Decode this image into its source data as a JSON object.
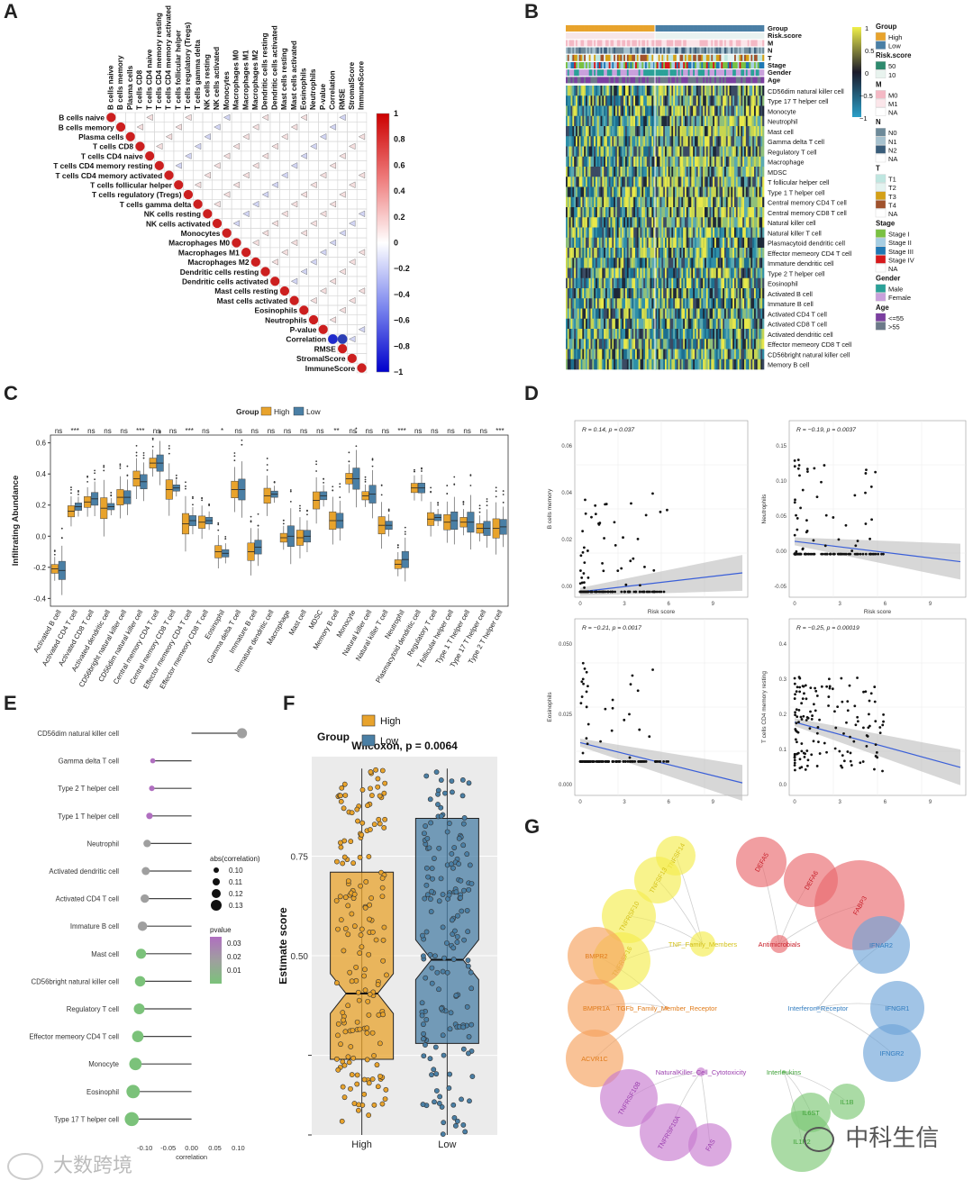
{
  "panels": {
    "A": "A",
    "B": "B",
    "C": "C",
    "D": "D",
    "E": "E",
    "F": "F",
    "G": "G"
  },
  "watermark": {
    "left": "大数跨境",
    "right": "中科生信"
  },
  "chart_data": [
    {
      "panel": "A",
      "type": "heatmap",
      "labels": [
        "B cells naive",
        "B cells memory",
        "Plasma cells",
        "T cells CD8",
        "T cells CD4 naive",
        "T cells CD4 memory resting",
        "T cells CD4 memory activated",
        "T cells follicular helper",
        "T cells regulatory (Tregs)",
        "T cells gamma delta",
        "NK cells resting",
        "NK cells activated",
        "Monocytes",
        "Macrophages M0",
        "Macrophages M1",
        "Macrophages M2",
        "Dendritic cells resting",
        "Dendritic cells activated",
        "Mast cells resting",
        "Mast cells activated",
        "Eosinophils",
        "Neutrophils",
        "P-value",
        "Correlation",
        "RMSE",
        "StromalScore",
        "ImmuneScore"
      ],
      "colorbar_ticks": [
        "1",
        "0.8",
        "0.6",
        "0.4",
        "0.2",
        "0",
        "−0.2",
        "−0.4",
        "−0.6",
        "−0.8",
        "−1"
      ],
      "colors": {
        "pos": "#cc1f1f",
        "neg": "#1f2bcc"
      }
    },
    {
      "panel": "B",
      "type": "heatmap",
      "annotation_rows": [
        "Group",
        "Risk.score",
        "M",
        "N",
        "T",
        "Stage",
        "Gender",
        "Age"
      ],
      "rows": [
        "CD56dim natural killer cell",
        "Type 17 T helper cell",
        "Monocyte",
        "Neutrophil",
        "Mast cell",
        "Gamma delta T cell",
        "Regulatory T cell",
        "Macrophage",
        "MDSC",
        "T follicular helper cell",
        "Type 1 T helper cell",
        "Central memory CD4 T cell",
        "Central memory CD8 T cell",
        "Natural killer cell",
        "Natural killer T cell",
        "Plasmacytoid dendritic cell",
        "Effector memeory CD4 T cell",
        "Immature dendritic cell",
        "Type 2 T helper cell",
        "Eosinophil",
        "Activated B cell",
        "Immature  B cell",
        "Activated CD4 T cell",
        "Activated CD8 T cell",
        "Activated dendritic cell",
        "Effector memeory CD8 T cell",
        "CD56bright natural killer cell",
        "Memory B cell"
      ],
      "scale_ticks": [
        "1",
        "0.5",
        "0",
        "−0.5",
        "−1"
      ],
      "legends": [
        {
          "title": "Group",
          "items": [
            {
              "label": "High",
              "color": "#e8a32c"
            },
            {
              "label": "Low",
              "color": "#4a7fa5"
            }
          ]
        },
        {
          "title": "Risk.score",
          "items": [
            {
              "label": "50",
              "color": "#2e8a6e"
            },
            {
              "label": "10",
              "color": "#e8f3ee"
            }
          ]
        },
        {
          "title": "M",
          "items": [
            {
              "label": "M0",
              "color": "#f4b8c4"
            },
            {
              "label": "M1",
              "color": "#fbe6ea"
            },
            {
              "label": "NA",
              "color": "#ffffff"
            }
          ]
        },
        {
          "title": "N",
          "items": [
            {
              "label": "N0",
              "color": "#6e8a99"
            },
            {
              "label": "N1",
              "color": "#a7c2cf"
            },
            {
              "label": "N2",
              "color": "#3a5d7a"
            },
            {
              "label": "NA",
              "color": "#ffffff"
            }
          ]
        },
        {
          "title": "T",
          "items": [
            {
              "label": "T1",
              "color": "#bfe6e0"
            },
            {
              "label": "T2",
              "color": "#e4f3f0"
            },
            {
              "label": "T3",
              "color": "#d4a017"
            },
            {
              "label": "T4",
              "color": "#a0522d"
            },
            {
              "label": "NA",
              "color": "#ffffff"
            }
          ]
        },
        {
          "title": "Stage",
          "items": [
            {
              "label": "Stage I",
              "color": "#7ac142"
            },
            {
              "label": "Stage II",
              "color": "#a6cee3"
            },
            {
              "label": "Stage III",
              "color": "#1f78b4"
            },
            {
              "label": "Stage IV",
              "color": "#d7191c"
            },
            {
              "label": "NA",
              "color": "#ffffff"
            }
          ]
        },
        {
          "title": "Gender",
          "items": [
            {
              "label": "Male",
              "color": "#2aa198"
            },
            {
              "label": "Female",
              "color": "#c9a0dc"
            }
          ]
        },
        {
          "title": "Age",
          "items": [
            {
              "label": "<=55",
              "color": "#7b3fa0"
            },
            {
              "label": ">55",
              "color": "#6c7a89"
            }
          ]
        }
      ]
    },
    {
      "panel": "C",
      "type": "box",
      "legend_title": "Group",
      "series": [
        {
          "name": "High",
          "color": "#e8a32c"
        },
        {
          "name": "Low",
          "color": "#4a7fa5"
        }
      ],
      "ylabel": "Infiltrating Abundance",
      "ylim": [
        -0.45,
        0.65
      ],
      "yticks": [
        "0.6",
        "0.4",
        "0.2",
        "0.0",
        "-0.2",
        "-0.4"
      ],
      "categories": [
        "Activated B cell",
        "Activated CD4 T cell",
        "Activated CD8 T cell",
        "Activated dendritic cell",
        "CD56bright natural killer cell",
        "CD56dim natural killer cell",
        "Central memory CD4 T cell",
        "Central memory CD8 T cell",
        "Effector memeory CD4 T cell",
        "Effector memeory CD8 T cell",
        "Eosinophil",
        "Gamma delta T cell",
        "Immature  B cell",
        "Immature dendritic cell",
        "Macrophage",
        "Mast cell",
        "MDSC",
        "Memory B cell",
        "Monocyte",
        "Natural killer cell",
        "Natural killer T cell",
        "Neutrophil",
        "Plasmacytoid dendritic cell",
        "Regulatory T cell",
        "T follicular helper cell",
        "Type 1 T helper cell",
        "Type 17 T helper cell",
        "Type 2 T helper cell"
      ],
      "significance": [
        "ns",
        "***",
        "ns",
        "ns",
        "ns",
        "***",
        "ns",
        "ns",
        "***",
        "ns",
        "*",
        "ns",
        "ns",
        "ns",
        "ns",
        "ns",
        "ns",
        "**",
        "ns",
        "ns",
        "ns",
        "***",
        "ns",
        "ns",
        "ns",
        "ns",
        "ns",
        "***"
      ],
      "medians_high": [
        -0.21,
        0.16,
        0.22,
        0.18,
        0.25,
        0.37,
        0.47,
        0.3,
        0.08,
        0.09,
        -0.1,
        0.3,
        -0.1,
        0.26,
        -0.01,
        -0.01,
        0.23,
        0.1,
        0.37,
        0.26,
        0.07,
        -0.18,
        0.31,
        0.11,
        0.09,
        0.09,
        0.05,
        0.05
      ],
      "medians_low": [
        -0.22,
        0.19,
        0.24,
        0.19,
        0.25,
        0.35,
        0.47,
        0.31,
        0.1,
        0.1,
        -0.11,
        0.3,
        -0.07,
        0.27,
        0.0,
        0.0,
        0.26,
        0.1,
        0.37,
        0.27,
        0.07,
        -0.15,
        0.31,
        0.12,
        0.1,
        0.09,
        0.05,
        0.06
      ]
    },
    {
      "panel": "D",
      "type": "scatter",
      "subplots": [
        {
          "ylabel": "B cells memory",
          "xlabel": "Risk score",
          "stat": "R = 0.14, p = 0.037",
          "yticks": [
            "0.06",
            "0.04",
            "0.02",
            "0.00"
          ],
          "xticks": [
            "0",
            "3",
            "6",
            "9"
          ],
          "xlim": [
            0,
            11
          ],
          "ylim": [
            0,
            0.07
          ],
          "line": [
            [
              0,
              0.0
            ],
            [
              11,
              0.008
            ]
          ]
        },
        {
          "ylabel": "Neutrophils",
          "xlabel": "Risk score",
          "stat": "R = −0.19, p = 0.0037",
          "yticks": [
            "0.15",
            "0.10",
            "0.05",
            "0.00",
            "-0.05"
          ],
          "xticks": [
            "0",
            "3",
            "6",
            "9"
          ],
          "xlim": [
            0,
            11
          ],
          "ylim": [
            -0.05,
            0.17
          ],
          "line": [
            [
              0,
              0.017
            ],
            [
              11,
              -0.01
            ]
          ]
        },
        {
          "ylabel": "Eosinophils",
          "xlabel": "Risk score",
          "stat": "R = −0.21, p = 0.0017",
          "yticks": [
            "0.050",
            "0.025",
            "0.000"
          ],
          "xticks": [
            "0",
            "3",
            "6",
            "9"
          ],
          "xlim": [
            0,
            11
          ],
          "ylim": [
            -0.012,
            0.058
          ],
          "line": [
            [
              0,
              0.008
            ],
            [
              11,
              -0.009
            ]
          ]
        },
        {
          "ylabel": "T cells CD4 memory resting",
          "xlabel": "Risk score",
          "stat": "R = −0.25, p = 0.00019",
          "yticks": [
            "0.4",
            "0.3",
            "0.2",
            "0.1",
            "0.0"
          ],
          "xticks": [
            "0",
            "3",
            "6",
            "9"
          ],
          "xlim": [
            0,
            11
          ],
          "ylim": [
            -0.01,
            0.43
          ],
          "line": [
            [
              0,
              0.17
            ],
            [
              11,
              0.05
            ]
          ]
        }
      ]
    },
    {
      "panel": "E",
      "type": "lollipop",
      "xlabel": "correlation",
      "xticks": [
        "-0.10",
        "-0.05",
        "0.00",
        "0.05",
        "0.10"
      ],
      "xlim": [
        -0.14,
        0.13
      ],
      "size_legend_title": "abs(correlation)",
      "size_legend": [
        "0.10",
        "0.11",
        "0.12",
        "0.13"
      ],
      "color_legend_title": "pvalue",
      "color_legend": [
        "0.03",
        "0.02",
        "0.01"
      ],
      "items": [
        {
          "label": "CD56dim natural killer cell",
          "value": 0.108,
          "p": 0.02
        },
        {
          "label": "Gamma delta T cell",
          "value": -0.083,
          "p": 0.03
        },
        {
          "label": "Type 2 T helper cell",
          "value": -0.085,
          "p": 0.03
        },
        {
          "label": "Type 1 T helper cell",
          "value": -0.09,
          "p": 0.027
        },
        {
          "label": "Neutrophil",
          "value": -0.095,
          "p": 0.02
        },
        {
          "label": "Activated dendritic cell",
          "value": -0.098,
          "p": 0.02
        },
        {
          "label": "Activated CD4 T cell",
          "value": -0.1,
          "p": 0.019
        },
        {
          "label": "Immature  B cell",
          "value": -0.105,
          "p": 0.016
        },
        {
          "label": "Mast cell",
          "value": -0.108,
          "p": 0.015
        },
        {
          "label": "CD56bright natural killer cell",
          "value": -0.11,
          "p": 0.014
        },
        {
          "label": "Regulatory T cell",
          "value": -0.112,
          "p": 0.013
        },
        {
          "label": "Effector memeory CD4 T cell",
          "value": -0.115,
          "p": 0.012
        },
        {
          "label": "Monocyte",
          "value": -0.12,
          "p": 0.008
        },
        {
          "label": "Eosinophil",
          "value": -0.125,
          "p": 0.006
        },
        {
          "label": "Type 17 T helper cell",
          "value": -0.128,
          "p": 0.005
        }
      ]
    },
    {
      "panel": "F",
      "type": "box",
      "legend_title": "Group",
      "series": [
        {
          "name": "High",
          "color": "#e8a32c"
        },
        {
          "name": "Low",
          "color": "#4a7fa5"
        }
      ],
      "title": "Wilcoxon, p = 0.0064",
      "ylabel": "Estimate score",
      "yticks": [
        "0.75",
        "0.50"
      ],
      "categories": [
        "High",
        "Low"
      ],
      "ylim": [
        0.05,
        1.0
      ],
      "stats": [
        {
          "name": "High",
          "q1": 0.24,
          "median": 0.405,
          "q3": 0.71,
          "lower": 0.05,
          "upper": 0.97
        },
        {
          "name": "Low",
          "q1": 0.28,
          "median": 0.49,
          "q3": 0.845,
          "lower": 0.05,
          "upper": 0.97
        }
      ]
    },
    {
      "panel": "G",
      "type": "network",
      "groups": [
        {
          "hub": "TNF_Family_Members",
          "color": "#f5ec4e",
          "text": "#d4c21a",
          "nodes": [
            "TNFSF14",
            "TNFSF13",
            "TNFRSF10",
            "TNFRSF16"
          ]
        },
        {
          "hub": "Antimicrobials",
          "color": "#ea6a6f",
          "text": "#c8202a",
          "nodes": [
            "DEFA5",
            "DEFA6",
            "FABP3"
          ]
        },
        {
          "hub": "TGFb_Family_Member_Receptor",
          "color": "#f6a25e",
          "text": "#e07b1a",
          "nodes": [
            "BMPR2",
            "BMPR1A",
            "ACVR1C"
          ]
        },
        {
          "hub": "Interferon_Receptor",
          "color": "#6ea5d8",
          "text": "#2f7bbf",
          "nodes": [
            "IFNAR2",
            "IFNGR1",
            "IFNGR2"
          ]
        },
        {
          "hub": "NaturalKiller_Cell_Cytotoxicity",
          "color": "#c77bd0",
          "text": "#9b3fae",
          "nodes": [
            "TNFRSF10B",
            "TNFRSF10A",
            "FAS"
          ]
        },
        {
          "hub": "Interleukins",
          "color": "#7cc874",
          "text": "#3fa238",
          "nodes": [
            "IL1B",
            "IL1R2",
            "IL6ST"
          ]
        }
      ]
    }
  ]
}
